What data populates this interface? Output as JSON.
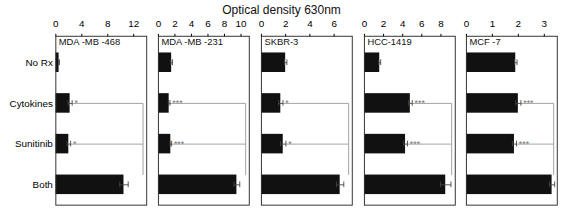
{
  "title": "Optical density 630nm",
  "chart_data": [
    {
      "type": "bar",
      "orientation": "horizontal",
      "title": "MDA -MB -468",
      "categories": [
        "No Rx",
        "Cytokines",
        "Sunitinib",
        "Both"
      ],
      "values": [
        0.5,
        2.2,
        2.0,
        10.5
      ],
      "errors": [
        0.05,
        0.32,
        0.28,
        0.65
      ],
      "annotations": [
        {
          "category": "Cytokines",
          "text": "*"
        },
        {
          "category": "Sunitinib",
          "text": "*"
        }
      ],
      "color": "#111111",
      "xlim": [
        0,
        14
      ],
      "xticks": [
        0,
        4,
        8,
        12
      ]
    },
    {
      "type": "bar",
      "orientation": "horizontal",
      "title": "MDA -MB -231",
      "categories": [
        "No Rx",
        "Cytokines",
        "Sunitinib",
        "Both"
      ],
      "values": [
        1.6,
        1.3,
        1.5,
        9.5
      ],
      "errors": [
        0.1,
        0.1,
        0.1,
        0.35
      ],
      "annotations": [
        {
          "category": "Cytokines",
          "text": "***"
        },
        {
          "category": "Sunitinib",
          "text": "***"
        }
      ],
      "color": "#111111",
      "xlim": [
        0,
        11
      ],
      "xticks": [
        0,
        2,
        4,
        6,
        8,
        10
      ],
      "tick_labels": "x"
    },
    {
      "type": "bar",
      "orientation": "horizontal",
      "title": "SKBR-3",
      "categories": [
        "No Rx",
        "Cytokines",
        "Sunitinib",
        "Both"
      ],
      "values": [
        2.0,
        1.6,
        1.8,
        6.5
      ],
      "errors": [
        0.1,
        0.18,
        0.22,
        0.3
      ],
      "annotations": [
        {
          "category": "Cytokines",
          "text": "*"
        },
        {
          "category": "Sunitinib",
          "text": "*"
        }
      ],
      "color": "#111111",
      "xlim": [
        0,
        7.5
      ],
      "xticks": [
        0,
        2,
        4,
        6
      ],
      "tick_labels": "x"
    },
    {
      "type": "bar",
      "orientation": "horizontal",
      "title": "HCC-1419",
      "categories": [
        "No Rx",
        "Cytokines",
        "Sunitinib",
        "Both"
      ],
      "values": [
        1.6,
        4.8,
        4.3,
        8.5
      ],
      "errors": [
        0.1,
        0.2,
        0.2,
        0.55
      ],
      "annotations": [
        {
          "category": "Cytokines",
          "text": "***"
        },
        {
          "category": "Sunitinib",
          "text": "***"
        }
      ],
      "color": "#111111",
      "xlim": [
        0,
        9.5
      ],
      "xticks": [
        0,
        2,
        4,
        6,
        8
      ],
      "tick_labels": "x"
    },
    {
      "type": "bar",
      "orientation": "horizontal",
      "title": "MCF -7",
      "categories": [
        "No Rx",
        "Cytokines",
        "Sunitinib",
        "Both"
      ],
      "values": [
        1.9,
        2.0,
        1.85,
        3.3
      ],
      "errors": [
        0.05,
        0.1,
        0.08,
        0.1
      ],
      "annotations": [
        {
          "category": "Cytokines",
          "text": "***"
        },
        {
          "category": "Sunitinib",
          "text": "***"
        }
      ],
      "color": "#111111",
      "xlim": [
        0,
        3.5
      ],
      "xticks": [
        0,
        1,
        2,
        3
      ],
      "tick_labels": "x"
    }
  ]
}
